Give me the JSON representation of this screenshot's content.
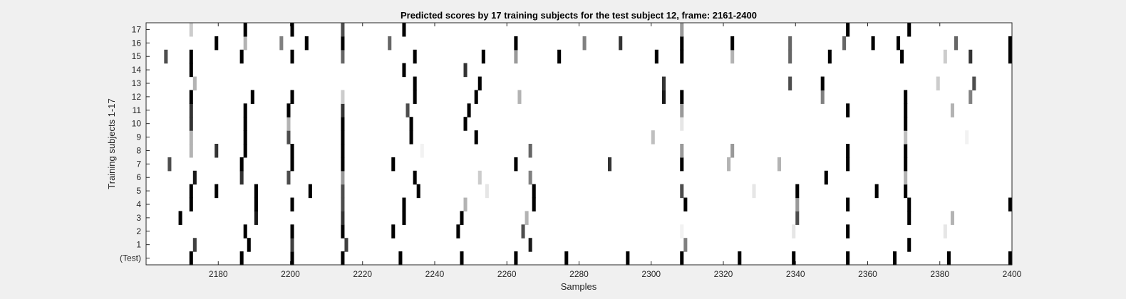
{
  "chart_data": {
    "type": "heatmap",
    "title": "Predicted scores by 17 training subjects for the test subject 12, frame: 2161-2400",
    "xlabel": "Samples",
    "ylabel": "Training subjects 1-17",
    "xlim": [
      2161,
      2400
    ],
    "x_ticks": [
      2180,
      2200,
      2220,
      2240,
      2260,
      2280,
      2300,
      2320,
      2340,
      2360,
      2380,
      2400
    ],
    "y_ticks": [
      "(Test)",
      "1",
      "2",
      "3",
      "4",
      "5",
      "6",
      "7",
      "8",
      "9",
      "10",
      "11",
      "12",
      "13",
      "14",
      "15",
      "16",
      "17"
    ],
    "colormap": "gray-inverted (white = 0, black = 1)",
    "grid": false,
    "rows": [
      {
        "label": "(Test)",
        "events": [
          [
            2173,
            1
          ],
          [
            2187,
            1
          ],
          [
            2201,
            1
          ],
          [
            2215,
            1
          ],
          [
            2231,
            1
          ],
          [
            2248,
            1
          ],
          [
            2263,
            1
          ],
          [
            2277,
            1
          ],
          [
            2294,
            1
          ],
          [
            2309,
            1
          ],
          [
            2325,
            1
          ],
          [
            2340,
            1
          ],
          [
            2355,
            1
          ],
          [
            2368,
            1
          ],
          [
            2383,
            1
          ],
          [
            2400,
            1
          ]
        ]
      },
      {
        "label": "1",
        "events": [
          [
            2174,
            0.75
          ],
          [
            2189,
            1
          ],
          [
            2201,
            0.75
          ],
          [
            2216,
            0.75
          ],
          [
            2267,
            0.9
          ],
          [
            2310,
            0.5
          ],
          [
            2372,
            1
          ]
        ]
      },
      {
        "label": "2",
        "events": [
          [
            2188,
            1
          ],
          [
            2201,
            1
          ],
          [
            2215,
            1
          ],
          [
            2229,
            1
          ],
          [
            2247,
            1
          ],
          [
            2265,
            0.7
          ],
          [
            2309,
            0.05
          ],
          [
            2340,
            0.1
          ],
          [
            2355,
            1
          ],
          [
            2382,
            0.1
          ]
        ]
      },
      {
        "label": "3",
        "events": [
          [
            2170,
            1
          ],
          [
            2191,
            0.9
          ],
          [
            2215,
            0.8
          ],
          [
            2232,
            1
          ],
          [
            2248,
            1
          ],
          [
            2266,
            0.3
          ],
          [
            2341,
            0.7
          ],
          [
            2372,
            1
          ],
          [
            2384,
            0.3
          ]
        ]
      },
      {
        "label": "4",
        "events": [
          [
            2173,
            1
          ],
          [
            2191,
            1
          ],
          [
            2201,
            1
          ],
          [
            2215,
            0.7
          ],
          [
            2232,
            1
          ],
          [
            2249,
            0.3
          ],
          [
            2268,
            1
          ],
          [
            2310,
            1
          ],
          [
            2341,
            0.4
          ],
          [
            2355,
            1
          ],
          [
            2372,
            1
          ],
          [
            2400,
            1
          ]
        ]
      },
      {
        "label": "5",
        "events": [
          [
            2173,
            1
          ],
          [
            2180,
            1
          ],
          [
            2191,
            1
          ],
          [
            2206,
            1
          ],
          [
            2215,
            0.7
          ],
          [
            2236,
            1
          ],
          [
            2255,
            0.1
          ],
          [
            2268,
            1
          ],
          [
            2309,
            0.7
          ],
          [
            2329,
            0.1
          ],
          [
            2341,
            1
          ],
          [
            2363,
            1
          ],
          [
            2371,
            1
          ]
        ]
      },
      {
        "label": "6",
        "events": [
          [
            2174,
            0.9
          ],
          [
            2187,
            0.8
          ],
          [
            2200,
            0.7
          ],
          [
            2215,
            0.4
          ],
          [
            2235,
            1
          ],
          [
            2253,
            0.2
          ],
          [
            2267,
            0.5
          ],
          [
            2349,
            1
          ],
          [
            2371,
            0.3
          ]
        ]
      },
      {
        "label": "7",
        "events": [
          [
            2167,
            0.7
          ],
          [
            2187,
            1
          ],
          [
            2201,
            1
          ],
          [
            2215,
            1
          ],
          [
            2229,
            1
          ],
          [
            2263,
            1
          ],
          [
            2289,
            0.8
          ],
          [
            2309,
            1
          ],
          [
            2322,
            0.3
          ],
          [
            2336,
            0.3
          ],
          [
            2355,
            1
          ],
          [
            2371,
            1
          ]
        ]
      },
      {
        "label": "8",
        "events": [
          [
            2173,
            0.3
          ],
          [
            2180,
            0.8
          ],
          [
            2188,
            1
          ],
          [
            2201,
            1
          ],
          [
            2215,
            1
          ],
          [
            2237,
            0.05
          ],
          [
            2267,
            0.6
          ],
          [
            2309,
            0.4
          ],
          [
            2323,
            0.4
          ],
          [
            2355,
            1
          ],
          [
            2371,
            1
          ]
        ]
      },
      {
        "label": "9",
        "events": [
          [
            2173,
            0.3
          ],
          [
            2188,
            1
          ],
          [
            2200,
            0.7
          ],
          [
            2215,
            1
          ],
          [
            2234,
            1
          ],
          [
            2252,
            1
          ],
          [
            2301,
            0.25
          ],
          [
            2371,
            0.25
          ],
          [
            2388,
            0.05
          ]
        ]
      },
      {
        "label": "10",
        "events": [
          [
            2173,
            0.8
          ],
          [
            2188,
            1
          ],
          [
            2200,
            0.3
          ],
          [
            2215,
            1
          ],
          [
            2234,
            1
          ],
          [
            2249,
            1
          ],
          [
            2309,
            0.1
          ],
          [
            2371,
            1
          ]
        ]
      },
      {
        "label": "11",
        "events": [
          [
            2173,
            0.8
          ],
          [
            2188,
            1
          ],
          [
            2200,
            1
          ],
          [
            2215,
            0.8
          ],
          [
            2233,
            0.7
          ],
          [
            2250,
            1
          ],
          [
            2309,
            0.4
          ],
          [
            2355,
            1
          ],
          [
            2371,
            1
          ],
          [
            2384,
            0.3
          ]
        ]
      },
      {
        "label": "12",
        "events": [
          [
            2173,
            1
          ],
          [
            2190,
            1
          ],
          [
            2201,
            1
          ],
          [
            2215,
            0.2
          ],
          [
            2235,
            1
          ],
          [
            2252,
            1
          ],
          [
            2264,
            0.3
          ],
          [
            2304,
            0.9
          ],
          [
            2309,
            1
          ],
          [
            2348,
            0.5
          ],
          [
            2371,
            1
          ],
          [
            2389,
            0.5
          ]
        ]
      },
      {
        "label": "13",
        "events": [
          [
            2174,
            0.3
          ],
          [
            2235,
            1
          ],
          [
            2253,
            1
          ],
          [
            2304,
            0.8
          ],
          [
            2339,
            0.7
          ],
          [
            2348,
            1
          ],
          [
            2380,
            0.2
          ],
          [
            2390,
            0.7
          ]
        ]
      },
      {
        "label": "14",
        "events": [
          [
            2173,
            1
          ],
          [
            2232,
            1
          ],
          [
            2249,
            0.8
          ]
        ]
      },
      {
        "label": "15",
        "events": [
          [
            2166,
            0.7
          ],
          [
            2173,
            1
          ],
          [
            2187,
            1
          ],
          [
            2201,
            1
          ],
          [
            2215,
            0.6
          ],
          [
            2235,
            1
          ],
          [
            2254,
            1
          ],
          [
            2263,
            0.4
          ],
          [
            2275,
            1
          ],
          [
            2302,
            1
          ],
          [
            2309,
            1
          ],
          [
            2323,
            0.3
          ],
          [
            2339,
            0.6
          ],
          [
            2350,
            1
          ],
          [
            2370,
            1
          ],
          [
            2382,
            0.2
          ],
          [
            2389,
            0.8
          ],
          [
            2400,
            1
          ]
        ]
      },
      {
        "label": "16",
        "events": [
          [
            2180,
            1
          ],
          [
            2188,
            0.3
          ],
          [
            2198,
            0.5
          ],
          [
            2205,
            1
          ],
          [
            2215,
            1
          ],
          [
            2228,
            0.6
          ],
          [
            2263,
            1
          ],
          [
            2282,
            0.5
          ],
          [
            2292,
            0.8
          ],
          [
            2309,
            1
          ],
          [
            2323,
            1
          ],
          [
            2339,
            0.6
          ],
          [
            2354,
            0.6
          ],
          [
            2362,
            1
          ],
          [
            2369,
            1
          ],
          [
            2385,
            0.6
          ],
          [
            2400,
            1
          ]
        ]
      },
      {
        "label": "17",
        "events": [
          [
            2173,
            0.2
          ],
          [
            2188,
            1
          ],
          [
            2201,
            1
          ],
          [
            2215,
            0.7
          ],
          [
            2232,
            1
          ],
          [
            2309,
            0.4
          ],
          [
            2355,
            1
          ],
          [
            2372,
            1
          ]
        ]
      }
    ]
  }
}
